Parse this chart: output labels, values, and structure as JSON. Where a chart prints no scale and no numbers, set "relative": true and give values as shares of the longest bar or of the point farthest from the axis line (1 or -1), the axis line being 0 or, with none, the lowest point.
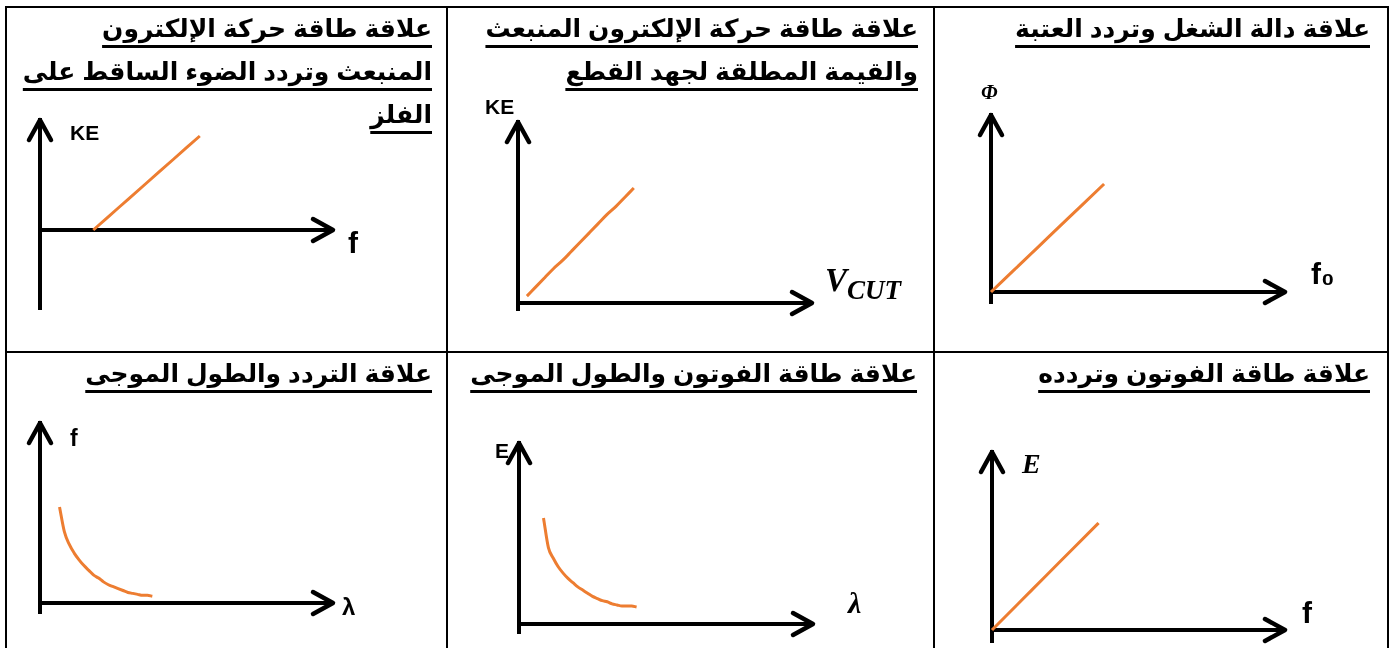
{
  "chart_data": [
    {
      "type": "line",
      "title": "علاقة دالة الشغل وتردد العتبة",
      "xlabel": "f₀",
      "ylabel": "Φ",
      "relative": true,
      "tick_labels": false,
      "marker": "none",
      "color": "#ed7d31",
      "categories": [
        null,
        null,
        null,
        null,
        null,
        null,
        null,
        null,
        null,
        null,
        null,
        null,
        null,
        null
      ],
      "values": [
        0,
        0.2,
        0.4,
        0.6,
        0.8,
        1,
        null,
        null,
        null,
        null,
        null,
        null,
        null,
        null
      ]
    },
    {
      "type": "line",
      "title": "علاقة طاقة حركة الإلكترون المنبعث والقيمة المطلقة لجهد القطع",
      "xlabel": "V$_{CUT}$",
      "ylabel": "KE",
      "relative": true,
      "tick_labels": false,
      "marker": "none",
      "color": "#ed7d31",
      "categories": [
        null,
        null,
        null,
        null,
        null,
        null,
        null,
        null,
        null,
        null,
        null,
        null,
        null,
        null,
        null,
        null,
        null,
        null,
        null,
        null,
        null,
        null,
        null,
        null,
        null,
        null,
        null,
        null,
        null,
        null,
        null,
        null,
        null,
        null
      ],
      "values": [
        null,
        0.06,
        0.14,
        0.22,
        0.3,
        0.37,
        0.45,
        0.53,
        0.61,
        0.69,
        0.77,
        0.84,
        0.92,
        1,
        null,
        null,
        null,
        null,
        null,
        null,
        null,
        null,
        null,
        null,
        null,
        null,
        null,
        null,
        null,
        null,
        null,
        null,
        null,
        null
      ]
    },
    {
      "type": "line",
      "title": "علاقة طاقة حركة الإلكترون المنبعث وتردد الضوء الساقط على الفلز",
      "xlabel": "f",
      "ylabel": "KE",
      "relative": true,
      "tick_labels": false,
      "marker": "none",
      "color": "#ed7d31",
      "categories": [
        null,
        null,
        null,
        null,
        null,
        null,
        null,
        null,
        null,
        null,
        null,
        null
      ],
      "values": [
        null,
        null,
        0,
        0.25,
        0.5,
        0.75,
        1,
        null,
        null,
        null,
        null,
        null
      ]
    },
    {
      "type": "line",
      "title": "علاقة طاقة الفوتون وتردده",
      "xlabel": "f",
      "ylabel": "E",
      "relative": true,
      "tick_labels": false,
      "marker": "none",
      "color": "#ed7d31",
      "categories": [
        null,
        null,
        null,
        null,
        null,
        null,
        null,
        null,
        null,
        null,
        null,
        null
      ],
      "values": [
        0,
        0.25,
        0.5,
        0.75,
        1,
        null,
        null,
        null,
        null,
        null,
        null,
        null
      ]
    },
    {
      "type": "line",
      "title": "علاقة طاقة الفوتون والطول الموجى",
      "xlabel": "λ",
      "ylabel": "E",
      "relative": true,
      "tick_labels": false,
      "marker": "none",
      "color": "#ed7d31",
      "categories": [
        null,
        null,
        null,
        null,
        null,
        null,
        null,
        null,
        null,
        null,
        null,
        null,
        null,
        null,
        null,
        null,
        null,
        null,
        null,
        null,
        null,
        null,
        null,
        null,
        null,
        null,
        null,
        null,
        null,
        null,
        null,
        null,
        null,
        null,
        null,
        null,
        null,
        null,
        null,
        null,
        null,
        null,
        null,
        null,
        null,
        null,
        null,
        null,
        null,
        null,
        null,
        null,
        null,
        null,
        null,
        null,
        null,
        null,
        null,
        null,
        null
      ],
      "values": [
        null,
        null,
        null,
        null,
        null,
        1,
        0.72,
        0.62,
        0.54,
        0.48,
        0.43,
        0.39,
        0.35,
        0.32,
        0.29,
        0.26,
        0.24,
        0.22,
        0.21,
        0.19,
        0.18,
        0.17,
        0.17,
        0.17,
        0.16,
        null,
        null,
        null,
        null,
        null,
        null,
        null,
        null,
        null,
        null,
        null,
        null,
        null,
        null,
        null,
        null,
        null,
        null,
        null,
        null,
        null,
        null,
        null,
        null,
        null,
        null,
        null,
        null,
        null,
        null,
        null,
        null,
        null,
        null,
        null,
        null
      ]
    },
    {
      "type": "line",
      "title": "علاقة التردد والطول الموجى",
      "xlabel": "λ",
      "ylabel": "f",
      "relative": true,
      "tick_labels": false,
      "marker": "none",
      "color": "#ed7d31",
      "categories": [
        null,
        null,
        null,
        null,
        null,
        null,
        null,
        null,
        null,
        null,
        null,
        null,
        null,
        null,
        null,
        null,
        null,
        null,
        null,
        null,
        null,
        null,
        null,
        null,
        null,
        null,
        null,
        null,
        null,
        null,
        null,
        null,
        null,
        null,
        null,
        null,
        null,
        null,
        null,
        null,
        null,
        null,
        null,
        null,
        null,
        null,
        null,
        null,
        null,
        null,
        null,
        null,
        null,
        null,
        null,
        null,
        null,
        null,
        null,
        null,
        null
      ],
      "values": [
        null,
        null,
        null,
        null,
        1,
        0.74,
        0.61,
        0.52,
        0.45,
        0.39,
        0.34,
        0.29,
        0.26,
        0.22,
        0.19,
        0.17,
        0.15,
        0.13,
        0.11,
        0.1,
        0.09,
        0.08,
        0.08,
        0.07,
        null,
        null,
        null,
        null,
        null,
        null,
        null,
        null,
        null,
        null,
        null,
        null,
        null,
        null,
        null,
        null,
        null,
        null,
        null,
        null,
        null,
        null,
        null,
        null,
        null,
        null,
        null,
        null,
        null,
        null,
        null,
        null,
        null,
        null,
        null,
        null,
        null
      ]
    }
  ]
}
